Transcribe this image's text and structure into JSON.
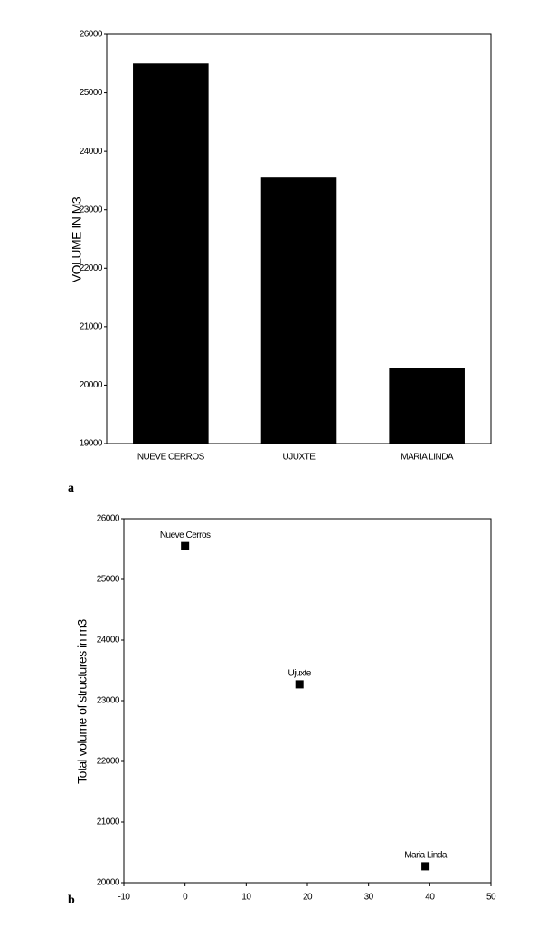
{
  "chart_data": [
    {
      "type": "bar",
      "panel_label": "a",
      "y_label": "VOLUME IN M3",
      "categories": [
        "NUEVE CERROS",
        "UJUXTE",
        "MARIA LINDA"
      ],
      "values": [
        25500,
        23550,
        20300
      ],
      "color": "#000000",
      "ylim": [
        19000,
        26000
      ],
      "yticks": [
        19000,
        20000,
        21000,
        22000,
        23000,
        24000,
        25000,
        26000
      ],
      "grid": false
    },
    {
      "type": "scatter",
      "panel_label": "b",
      "y_label": "Total volume of structures in m3",
      "point_labels": [
        "Nueve Cerros",
        "Ujuxte",
        "Maria Linda"
      ],
      "x": [
        0,
        18.7,
        39.3
      ],
      "values": [
        25550,
        23270,
        20270
      ],
      "color": "#000000",
      "xlim": [
        -10,
        50
      ],
      "xticks": [
        -10,
        0,
        10,
        20,
        30,
        40,
        50
      ],
      "ylim": [
        20000,
        26000
      ],
      "yticks": [
        20000,
        21000,
        22000,
        23000,
        24000,
        25000,
        26000
      ],
      "grid": false
    }
  ]
}
